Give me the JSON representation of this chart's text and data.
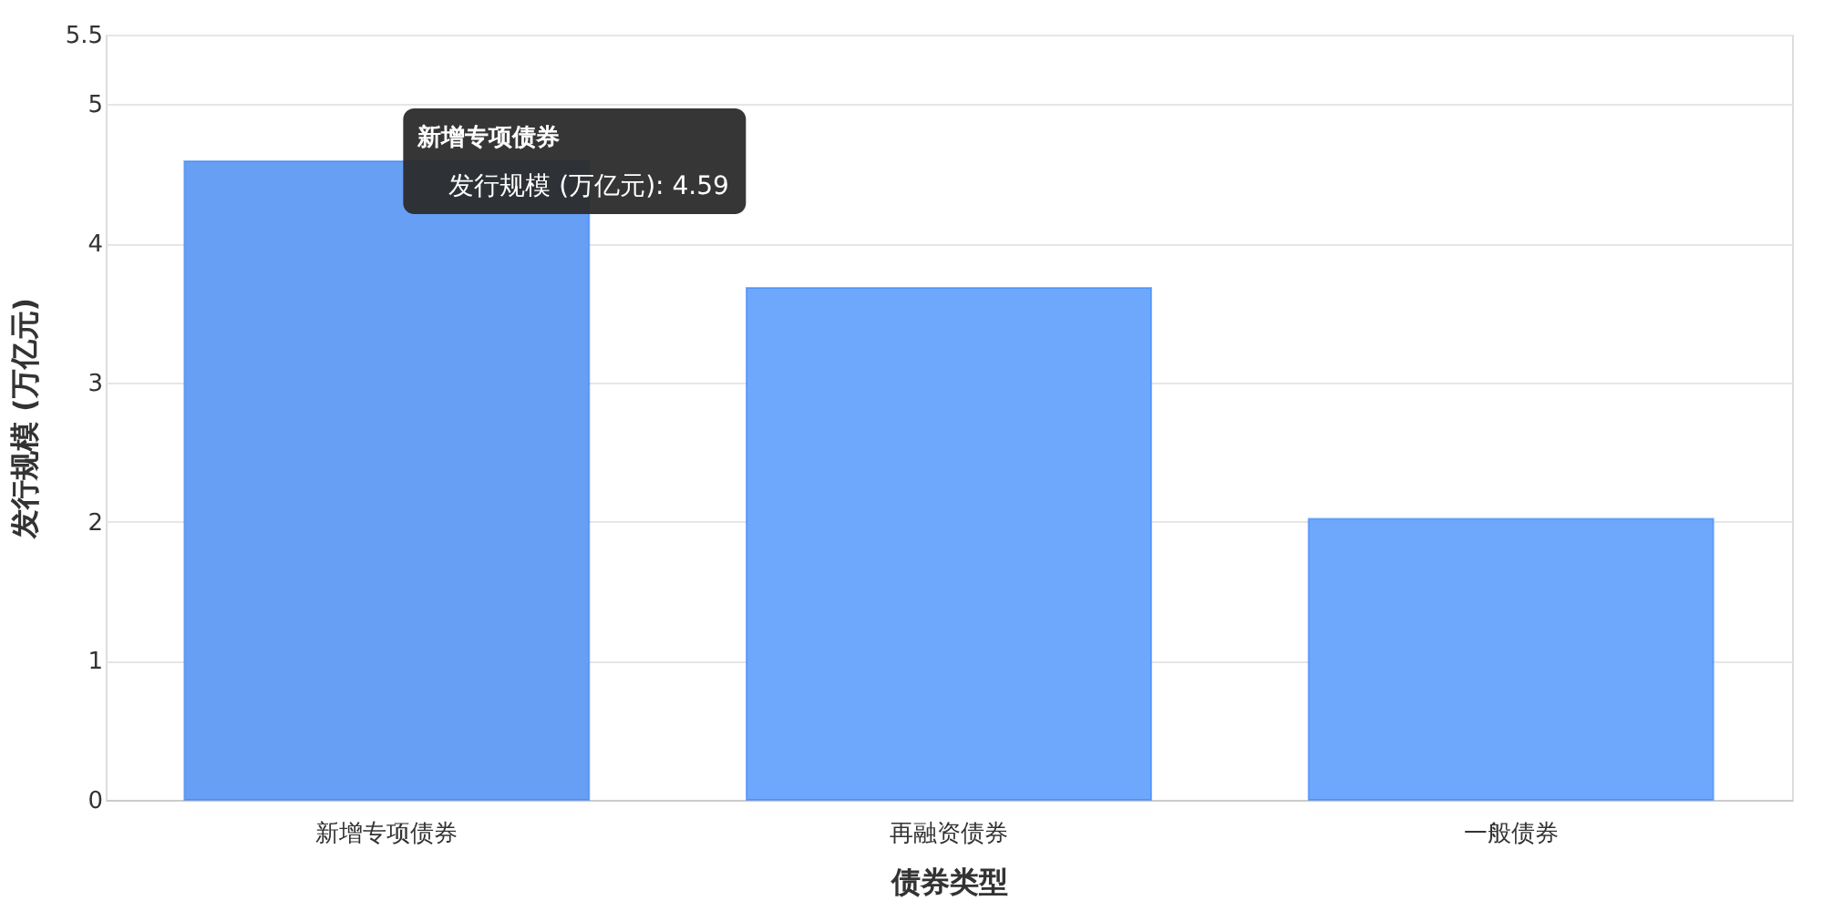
{
  "chart_data": {
    "type": "bar",
    "xlabel": "债券类型",
    "ylabel": "发行规模 (万亿元)",
    "categories": [
      "新增专项债券",
      "再融资债券",
      "一般债券"
    ],
    "values": [
      4.59,
      3.68,
      2.02
    ],
    "colors": [
      "#679ff5",
      "#6ea8fd",
      "#6ea8fd"
    ],
    "ylim": [
      0,
      5.5
    ],
    "yticks": [
      0,
      1,
      2,
      3,
      4,
      5,
      5.5
    ],
    "grid": "y",
    "annotations": [
      {
        "text": "新增专项债券",
        "x": "新增专项债券",
        "y": 4.59
      },
      {
        "text": "发行规模 (万亿元): 4.59",
        "x": "新增专项债券",
        "y": 4.59
      }
    ]
  }
}
